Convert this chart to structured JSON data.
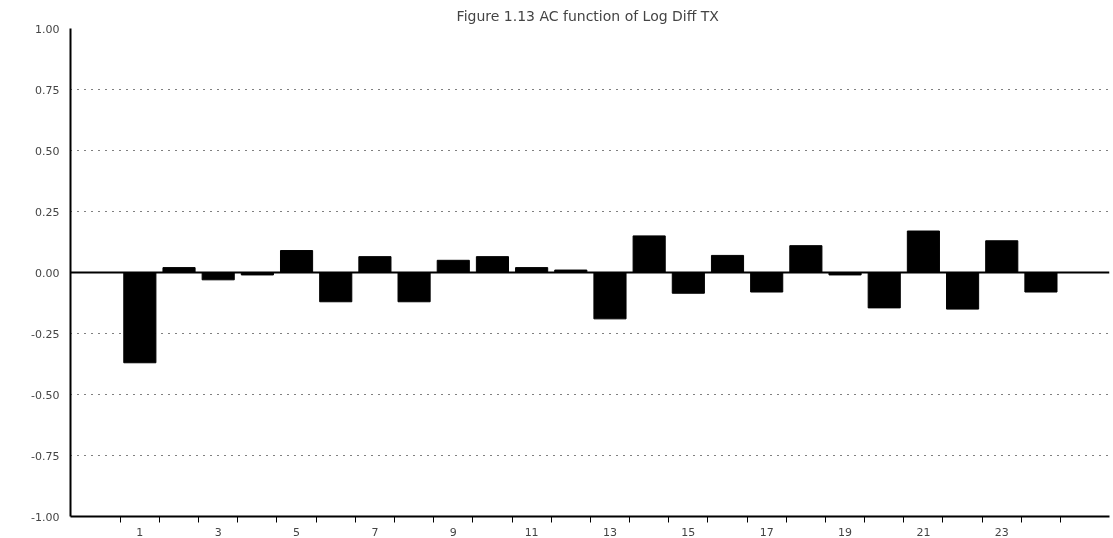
{
  "chart_data": {
    "type": "bar",
    "title": "Figure 1.13  AC function of Log Diff TX",
    "categories": [
      "1",
      null,
      "3",
      null,
      "5",
      null,
      "7",
      null,
      "9",
      null,
      "11",
      null,
      "13",
      null,
      "15",
      null,
      "17",
      null,
      "19",
      null,
      "21",
      null,
      "23",
      null
    ],
    "values": [
      -0.37,
      0.02,
      -0.03,
      -0.01,
      0.09,
      -0.12,
      0.065,
      -0.12,
      0.05,
      0.065,
      0.02,
      0.01,
      -0.19,
      0.15,
      -0.085,
      0.07,
      -0.08,
      0.11,
      -0.01,
      -0.145,
      0.17,
      -0.15,
      0.13,
      -0.08
    ],
    "color": "#000000",
    "ylim": [
      -1,
      1
    ],
    "yticks": [
      {
        "value": -1,
        "label": "-1.00"
      },
      {
        "value": -0.75,
        "label": "-0.75"
      },
      {
        "value": -0.5,
        "label": "-0.50"
      },
      {
        "value": -0.25,
        "label": "-0.25"
      },
      {
        "value": 0,
        "label": "0.00"
      },
      {
        "value": 0.25,
        "label": "0.25"
      },
      {
        "value": 0.5,
        "label": "0.50"
      },
      {
        "value": 0.75,
        "label": "0.75"
      },
      {
        "value": 1,
        "label": "1.00"
      }
    ],
    "grid": "y"
  }
}
